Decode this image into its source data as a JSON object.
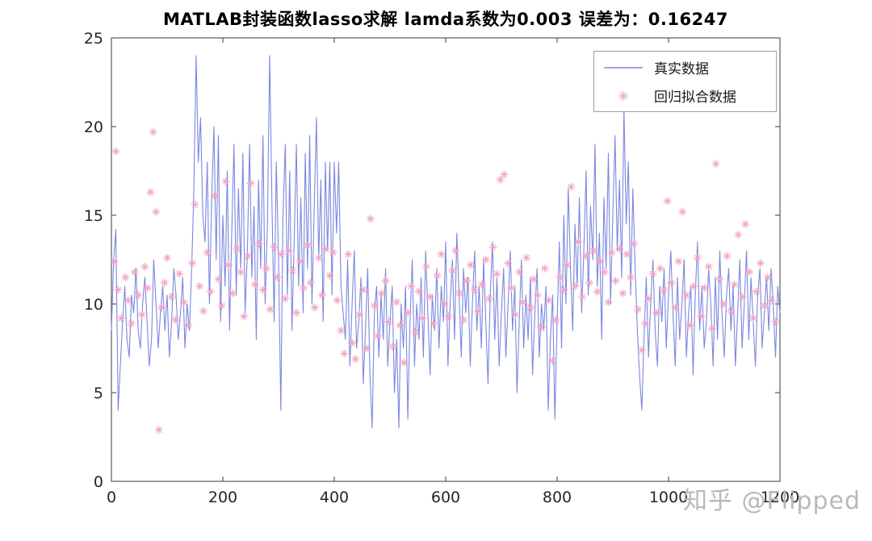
{
  "title": "MATLAB封装函数lasso求解  lamda系数为0.003  误差为：0.16247",
  "watermark": "知乎 @Flipped",
  "legend": {
    "series1_label": "真实数据",
    "series2_label": "回归拟合数据"
  },
  "colors": {
    "line": "#7b87e0",
    "marker": "#f3a6c4",
    "axis": "#3a3a3a",
    "tick_text": "#262626",
    "watermark": "#b9b9b9"
  },
  "chart_data": {
    "type": "line",
    "title": "MATLAB封装函数lasso求解  lamda系数为0.003  误差为：0.16247",
    "xlabel": "",
    "ylabel": "",
    "xlim": [
      0,
      1200
    ],
    "ylim": [
      0,
      25
    ],
    "xticks": [
      0,
      200,
      400,
      600,
      800,
      1000,
      1200
    ],
    "yticks": [
      0,
      5,
      10,
      15,
      20,
      25
    ],
    "grid": false,
    "legend_position": "top-right",
    "series": [
      {
        "name": "真实数据",
        "type": "line",
        "color": "#7b87e0",
        "x_start": 0,
        "x_step": 4,
        "values": [
          8.5,
          12.5,
          14.2,
          4.0,
          6.5,
          9.0,
          11.0,
          8.0,
          7.0,
          10.5,
          9.5,
          12.0,
          8.5,
          7.5,
          10.0,
          11.5,
          9.0,
          6.5,
          8.0,
          12.5,
          10.0,
          7.5,
          9.5,
          11.0,
          8.5,
          10.5,
          7.0,
          9.0,
          12.0,
          10.5,
          8.0,
          9.5,
          11.5,
          7.5,
          10.0,
          8.5,
          12.0,
          16.5,
          24.0,
          18.0,
          20.5,
          15.0,
          13.5,
          18.0,
          10.0,
          16.0,
          20.0,
          12.5,
          19.5,
          9.0,
          15.0,
          11.0,
          17.5,
          8.5,
          14.0,
          19.0,
          10.5,
          16.5,
          12.0,
          18.5,
          9.5,
          13.0,
          19.0,
          11.5,
          15.5,
          8.0,
          17.0,
          12.0,
          19.5,
          10.0,
          14.5,
          24.0,
          16.0,
          9.0,
          18.0,
          12.5,
          4.0,
          15.0,
          19.0,
          10.5,
          17.5,
          8.5,
          13.5,
          19.0,
          11.0,
          16.0,
          9.5,
          18.5,
          12.0,
          19.5,
          10.0,
          15.5,
          20.5,
          12.5,
          17.0,
          9.0,
          18.0,
          13.0,
          18.0,
          10.5,
          18.0,
          14.0,
          18.0,
          11.0,
          9.5,
          8.0,
          12.5,
          6.5,
          10.0,
          13.0,
          7.5,
          9.0,
          11.5,
          5.5,
          8.5,
          12.0,
          6.0,
          3.0,
          9.5,
          11.0,
          7.0,
          10.5,
          8.0,
          12.0,
          6.5,
          9.0,
          11.0,
          5.0,
          8.0,
          3.0,
          10.0,
          7.5,
          11.0,
          3.5,
          9.0,
          12.5,
          6.5,
          10.0,
          8.0,
          11.5,
          7.0,
          13.0,
          9.5,
          6.0,
          10.5,
          8.5,
          12.0,
          7.5,
          11.0,
          9.0,
          13.5,
          6.5,
          10.0,
          12.5,
          8.0,
          14.0,
          10.5,
          7.0,
          12.0,
          9.5,
          11.5,
          6.5,
          10.0,
          13.0,
          8.5,
          11.0,
          7.5,
          12.5,
          9.0,
          5.5,
          10.5,
          13.5,
          8.0,
          11.5,
          6.5,
          9.5,
          12.0,
          7.0,
          10.0,
          13.0,
          8.5,
          11.0,
          5.0,
          9.0,
          12.5,
          7.5,
          10.5,
          8.0,
          11.5,
          6.0,
          9.5,
          12.0,
          7.0,
          10.0,
          8.5,
          11.0,
          4.0,
          8.0,
          10.5,
          3.5,
          9.0,
          13.5,
          7.5,
          15.0,
          10.0,
          16.5,
          12.0,
          8.5,
          14.5,
          11.0,
          16.0,
          9.5,
          13.0,
          17.5,
          10.5,
          15.5,
          12.5,
          19.0,
          11.0,
          14.0,
          8.0,
          16.0,
          12.0,
          18.5,
          10.0,
          15.0,
          19.5,
          13.0,
          17.0,
          11.5,
          21.0,
          14.5,
          18.0,
          10.5,
          16.5,
          12.0,
          8.5,
          6.0,
          4.0,
          8.0,
          11.5,
          7.0,
          10.0,
          12.5,
          8.5,
          6.5,
          11.0,
          9.0,
          12.0,
          7.5,
          10.5,
          13.0,
          9.5,
          6.5,
          11.5,
          8.0,
          10.0,
          12.5,
          7.0,
          9.5,
          11.0,
          6.0,
          10.5,
          13.5,
          8.5,
          11.0,
          7.5,
          9.0,
          12.0,
          10.0,
          6.5,
          11.5,
          8.0,
          13.0,
          9.5,
          7.0,
          10.5,
          12.0,
          8.5,
          11.0,
          6.5,
          9.5,
          12.5,
          7.5,
          10.0,
          13.0,
          8.0,
          11.5,
          9.0,
          6.5,
          10.5,
          12.0,
          7.5,
          9.5,
          11.5,
          8.5,
          12.0,
          10.0,
          7.0,
          11.0,
          9.5
        ]
      },
      {
        "name": "回归拟合数据",
        "type": "scatter",
        "marker": "asterisk",
        "color": "#f3a6c4",
        "points": [
          [
            5,
            12.4
          ],
          [
            8,
            18.6
          ],
          [
            12,
            10.8
          ],
          [
            18,
            9.2
          ],
          [
            25,
            11.5
          ],
          [
            30,
            10.2
          ],
          [
            36,
            8.9
          ],
          [
            42,
            11.8
          ],
          [
            48,
            10.5
          ],
          [
            55,
            9.4
          ],
          [
            60,
            12.1
          ],
          [
            65,
            10.9
          ],
          [
            70,
            16.3
          ],
          [
            75,
            19.7
          ],
          [
            80,
            15.2
          ],
          [
            85,
            2.9
          ],
          [
            90,
            9.8
          ],
          [
            95,
            11.2
          ],
          [
            100,
            12.6
          ],
          [
            108,
            10.4
          ],
          [
            115,
            9.1
          ],
          [
            122,
            11.7
          ],
          [
            130,
            10.1
          ],
          [
            138,
            8.8
          ],
          [
            145,
            12.3
          ],
          [
            150,
            15.6
          ],
          [
            158,
            11.0
          ],
          [
            165,
            9.6
          ],
          [
            172,
            12.9
          ],
          [
            178,
            10.7
          ],
          [
            185,
            16.1
          ],
          [
            192,
            11.4
          ],
          [
            198,
            9.9
          ],
          [
            205,
            16.9
          ],
          [
            210,
            12.2
          ],
          [
            218,
            10.6
          ],
          [
            225,
            13.1
          ],
          [
            232,
            11.8
          ],
          [
            238,
            9.3
          ],
          [
            245,
            12.7
          ],
          [
            250,
            16.8
          ],
          [
            258,
            11.1
          ],
          [
            265,
            13.4
          ],
          [
            272,
            10.8
          ],
          [
            278,
            12.0
          ],
          [
            285,
            9.7
          ],
          [
            292,
            13.2
          ],
          [
            298,
            11.5
          ],
          [
            305,
            12.8
          ],
          [
            312,
            10.3
          ],
          [
            318,
            13.0
          ],
          [
            325,
            11.9
          ],
          [
            332,
            9.5
          ],
          [
            338,
            12.4
          ],
          [
            345,
            10.9
          ],
          [
            352,
            13.3
          ],
          [
            358,
            11.2
          ],
          [
            365,
            9.8
          ],
          [
            372,
            12.6
          ],
          [
            378,
            10.5
          ],
          [
            385,
            13.1
          ],
          [
            392,
            11.6
          ],
          [
            398,
            12.9
          ],
          [
            405,
            10.2
          ],
          [
            412,
            8.5
          ],
          [
            418,
            7.2
          ],
          [
            425,
            12.8
          ],
          [
            432,
            7.8
          ],
          [
            438,
            6.9
          ],
          [
            445,
            9.4
          ],
          [
            452,
            10.8
          ],
          [
            458,
            7.5
          ],
          [
            465,
            14.8
          ],
          [
            472,
            9.9
          ],
          [
            478,
            8.2
          ],
          [
            485,
            10.6
          ],
          [
            492,
            11.3
          ],
          [
            498,
            9.0
          ],
          [
            505,
            7.6
          ],
          [
            512,
            10.1
          ],
          [
            518,
            8.8
          ],
          [
            525,
            6.7
          ],
          [
            532,
            9.5
          ],
          [
            538,
            11.0
          ],
          [
            545,
            8.4
          ],
          [
            552,
            10.7
          ],
          [
            558,
            9.2
          ],
          [
            565,
            12.1
          ],
          [
            572,
            10.4
          ],
          [
            578,
            8.9
          ],
          [
            585,
            11.6
          ],
          [
            592,
            12.8
          ],
          [
            598,
            10.0
          ],
          [
            605,
            9.3
          ],
          [
            612,
            11.9
          ],
          [
            618,
            13.0
          ],
          [
            625,
            10.6
          ],
          [
            632,
            9.1
          ],
          [
            638,
            11.3
          ],
          [
            645,
            12.2
          ],
          [
            652,
            10.8
          ],
          [
            658,
            9.6
          ],
          [
            665,
            11.1
          ],
          [
            672,
            12.5
          ],
          [
            678,
            10.3
          ],
          [
            685,
            13.2
          ],
          [
            692,
            11.7
          ],
          [
            698,
            17.0
          ],
          [
            705,
            17.3
          ],
          [
            712,
            12.3
          ],
          [
            718,
            10.9
          ],
          [
            725,
            9.4
          ],
          [
            732,
            11.8
          ],
          [
            738,
            10.1
          ],
          [
            745,
            12.6
          ],
          [
            752,
            9.8
          ],
          [
            758,
            11.4
          ],
          [
            765,
            10.5
          ],
          [
            772,
            8.7
          ],
          [
            778,
            12.0
          ],
          [
            785,
            10.2
          ],
          [
            792,
            6.8
          ],
          [
            798,
            9.1
          ],
          [
            805,
            11.5
          ],
          [
            812,
            10.8
          ],
          [
            818,
            12.2
          ],
          [
            825,
            16.6
          ],
          [
            832,
            11.0
          ],
          [
            838,
            13.5
          ],
          [
            845,
            10.4
          ],
          [
            852,
            12.7
          ],
          [
            858,
            11.2
          ],
          [
            865,
            13.0
          ],
          [
            872,
            10.7
          ],
          [
            878,
            12.4
          ],
          [
            885,
            11.8
          ],
          [
            892,
            10.1
          ],
          [
            898,
            12.9
          ],
          [
            905,
            11.3
          ],
          [
            912,
            13.1
          ],
          [
            918,
            10.6
          ],
          [
            925,
            12.8
          ],
          [
            932,
            11.5
          ],
          [
            938,
            13.4
          ],
          [
            945,
            9.7
          ],
          [
            952,
            7.4
          ],
          [
            958,
            8.9
          ],
          [
            965,
            10.3
          ],
          [
            972,
            11.7
          ],
          [
            978,
            9.5
          ],
          [
            985,
            12.0
          ],
          [
            992,
            10.8
          ],
          [
            998,
            15.8
          ],
          [
            1005,
            11.2
          ],
          [
            1012,
            9.8
          ],
          [
            1018,
            12.4
          ],
          [
            1025,
            15.2
          ],
          [
            1032,
            10.5
          ],
          [
            1038,
            8.8
          ],
          [
            1045,
            11.0
          ],
          [
            1052,
            12.6
          ],
          [
            1058,
            9.3
          ],
          [
            1065,
            10.9
          ],
          [
            1072,
            12.1
          ],
          [
            1078,
            8.6
          ],
          [
            1085,
            17.9
          ],
          [
            1092,
            11.4
          ],
          [
            1098,
            10.0
          ],
          [
            1105,
            12.7
          ],
          [
            1112,
            9.6
          ],
          [
            1118,
            11.1
          ],
          [
            1125,
            13.9
          ],
          [
            1132,
            10.4
          ],
          [
            1138,
            14.5
          ],
          [
            1145,
            11.8
          ],
          [
            1152,
            9.2
          ],
          [
            1158,
            10.7
          ],
          [
            1165,
            12.3
          ],
          [
            1172,
            9.9
          ],
          [
            1178,
            11.5
          ],
          [
            1185,
            10.2
          ],
          [
            1192,
            9.0
          ]
        ]
      }
    ]
  }
}
